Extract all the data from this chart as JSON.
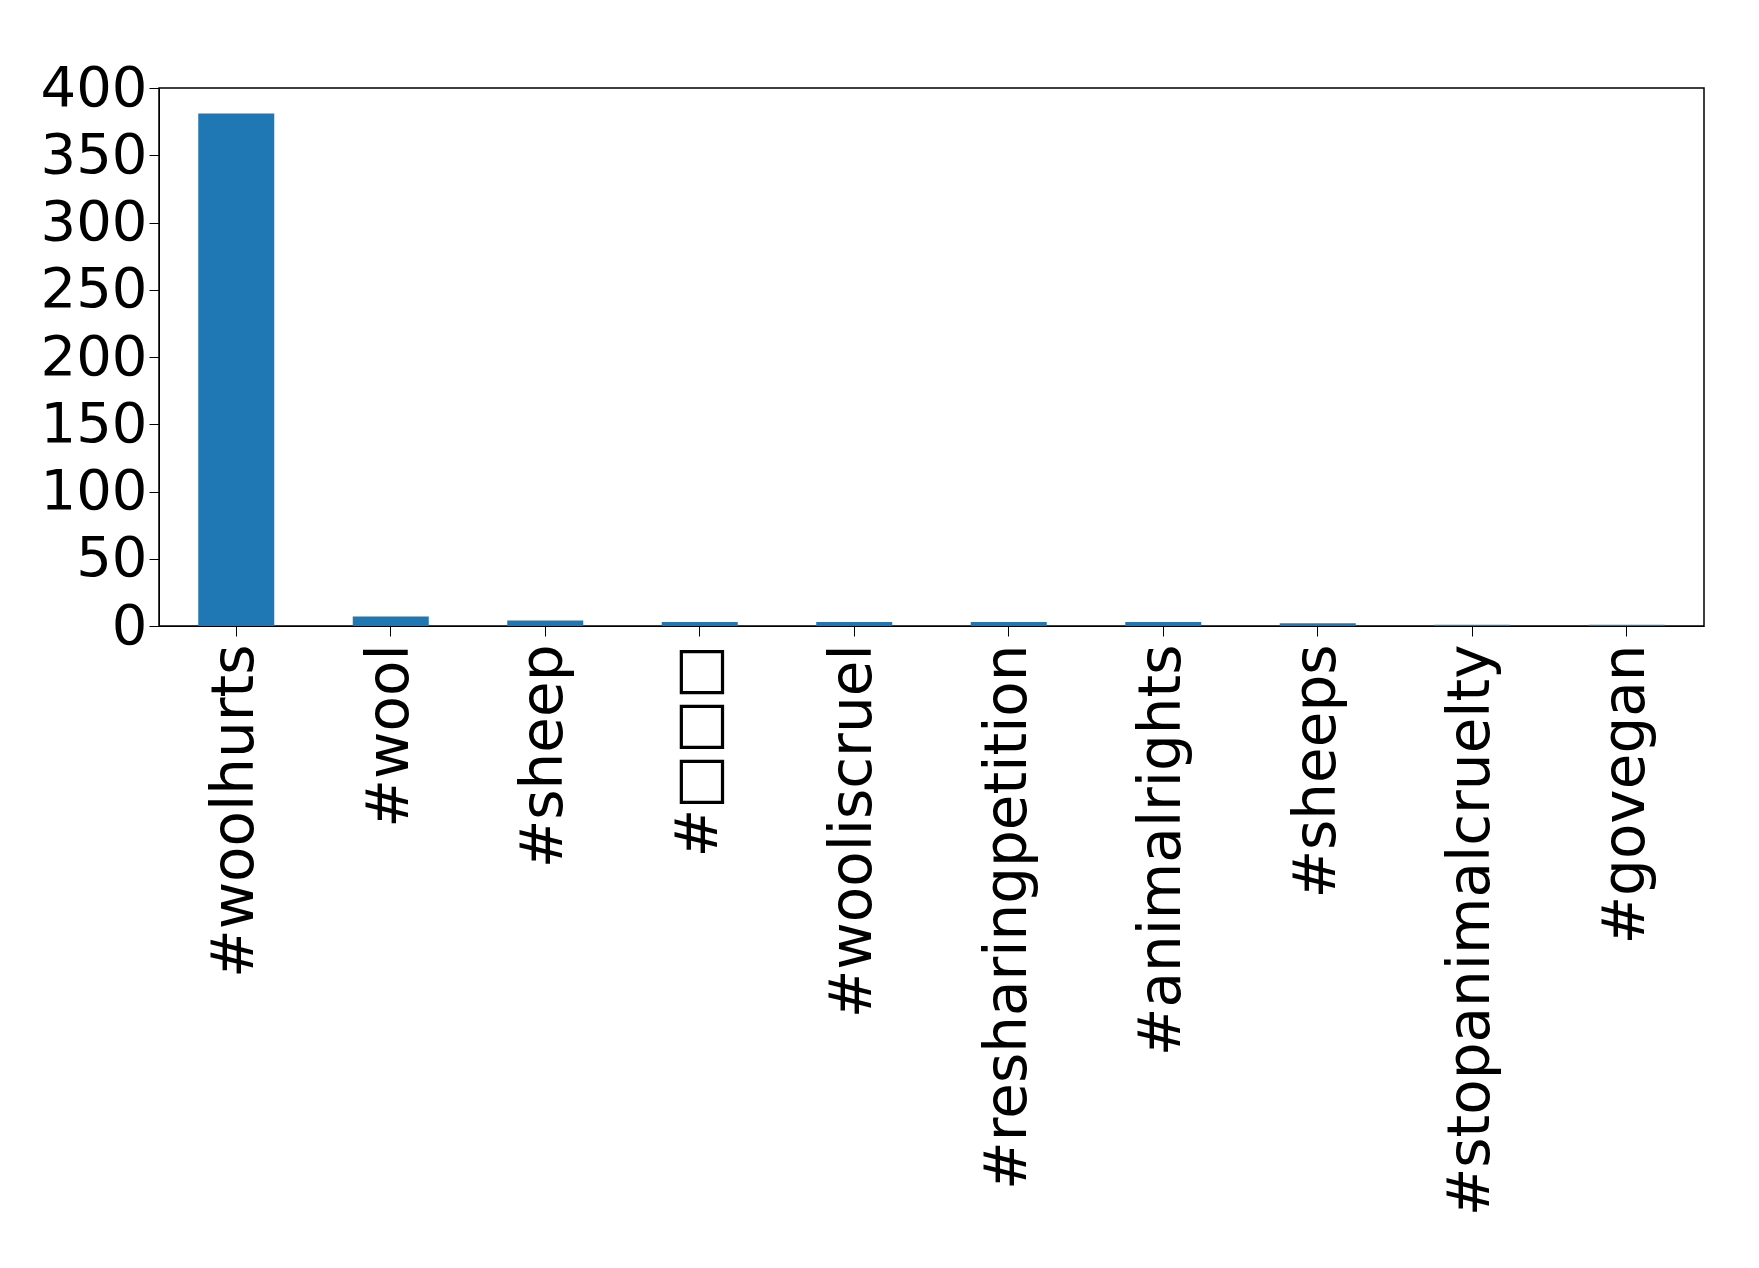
{
  "chart_data": {
    "type": "bar",
    "categories": [
      "#woolhurts",
      "#wool",
      "#sheep",
      "#□□□",
      "#wooliscruel",
      "#resharingpetition",
      "#animalrights",
      "#sheeps",
      "#stopanimalcruelty",
      "#govegan"
    ],
    "values": [
      381,
      7,
      4,
      3,
      3,
      3,
      3,
      2,
      1,
      1
    ],
    "color": "#1f77b4",
    "ylim": [
      0,
      400
    ],
    "yticks": [
      0,
      50,
      100,
      150,
      200,
      250,
      300,
      350,
      400
    ],
    "grid": false
  }
}
